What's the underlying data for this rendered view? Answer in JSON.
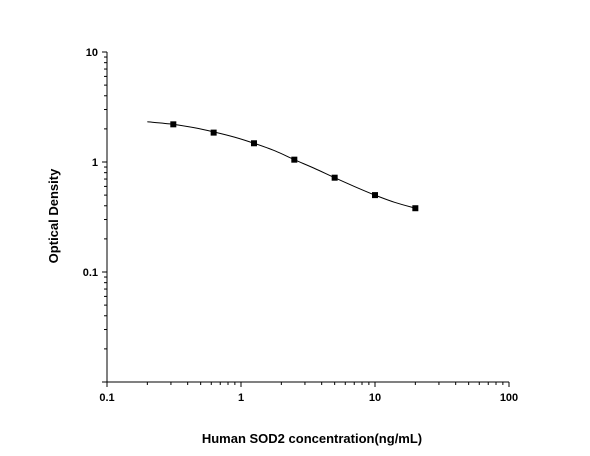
{
  "chart_data": {
    "type": "scatter",
    "title": "",
    "xlabel": "Human SOD2 concentration(ng/mL)",
    "ylabel": "Optical Density",
    "xscale": "log",
    "yscale": "log",
    "xlim": [
      0.1,
      100
    ],
    "ylim": [
      0.01,
      10
    ],
    "xticks": [
      {
        "value": 0.1,
        "label": "0.1"
      },
      {
        "value": 1,
        "label": "1"
      },
      {
        "value": 10,
        "label": "10"
      },
      {
        "value": 100,
        "label": "100"
      }
    ],
    "yticks": [
      {
        "value": 0.1,
        "label": "0.1"
      },
      {
        "value": 1,
        "label": "1"
      },
      {
        "value": 10,
        "label": "10"
      }
    ],
    "grid": false,
    "series": [
      {
        "points": [
          {
            "x": 0.3125,
            "y": 2.2
          },
          {
            "x": 0.625,
            "y": 1.85
          },
          {
            "x": 1.25,
            "y": 1.48
          },
          {
            "x": 2.5,
            "y": 1.05
          },
          {
            "x": 5,
            "y": 0.72
          },
          {
            "x": 10,
            "y": 0.5
          },
          {
            "x": 20,
            "y": 0.38
          }
        ],
        "marker": "square",
        "color": "#000000"
      }
    ],
    "fit_curve": {
      "x_range": [
        0.2,
        20
      ],
      "points": [
        {
          "x": 0.2,
          "y": 2.32
        },
        {
          "x": 0.3125,
          "y": 2.2
        },
        {
          "x": 0.45,
          "y": 2.05
        },
        {
          "x": 0.625,
          "y": 1.88
        },
        {
          "x": 0.9,
          "y": 1.68
        },
        {
          "x": 1.25,
          "y": 1.48
        },
        {
          "x": 1.8,
          "y": 1.26
        },
        {
          "x": 2.5,
          "y": 1.05
        },
        {
          "x": 3.5,
          "y": 0.88
        },
        {
          "x": 5,
          "y": 0.72
        },
        {
          "x": 7,
          "y": 0.6
        },
        {
          "x": 10,
          "y": 0.5
        },
        {
          "x": 14,
          "y": 0.43
        },
        {
          "x": 20,
          "y": 0.38
        }
      ],
      "color": "#000000"
    }
  }
}
